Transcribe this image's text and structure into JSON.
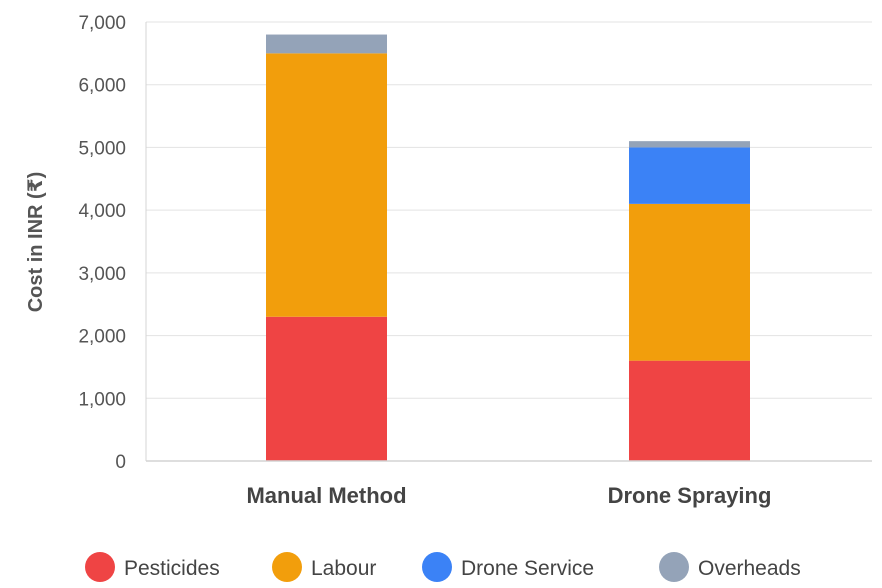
{
  "chart_data": {
    "type": "bar",
    "stacked": true,
    "title": "",
    "xlabel": "",
    "ylabel": "Cost in INR (₹)",
    "categories": [
      "Manual Method",
      "Drone Spraying"
    ],
    "series": [
      {
        "name": "Pesticides",
        "color": "#ef4444",
        "values": [
          2300,
          1600
        ]
      },
      {
        "name": "Labour",
        "color": "#f29e0c",
        "values": [
          4200,
          2500
        ]
      },
      {
        "name": "Drone Service",
        "color": "#3b82f6",
        "values": [
          0,
          900
        ]
      },
      {
        "name": "Overheads",
        "color": "#94a3b8",
        "values": [
          300,
          100
        ]
      }
    ],
    "ylim": [
      0,
      7000
    ],
    "yticks": [
      0,
      1000,
      2000,
      3000,
      4000,
      5000,
      6000,
      7000
    ],
    "ytick_labels": [
      "0",
      "1,000",
      "2,000",
      "3,000",
      "4,000",
      "5,000",
      "6,000",
      "7,000"
    ],
    "grid": true,
    "legend_position": "bottom"
  }
}
